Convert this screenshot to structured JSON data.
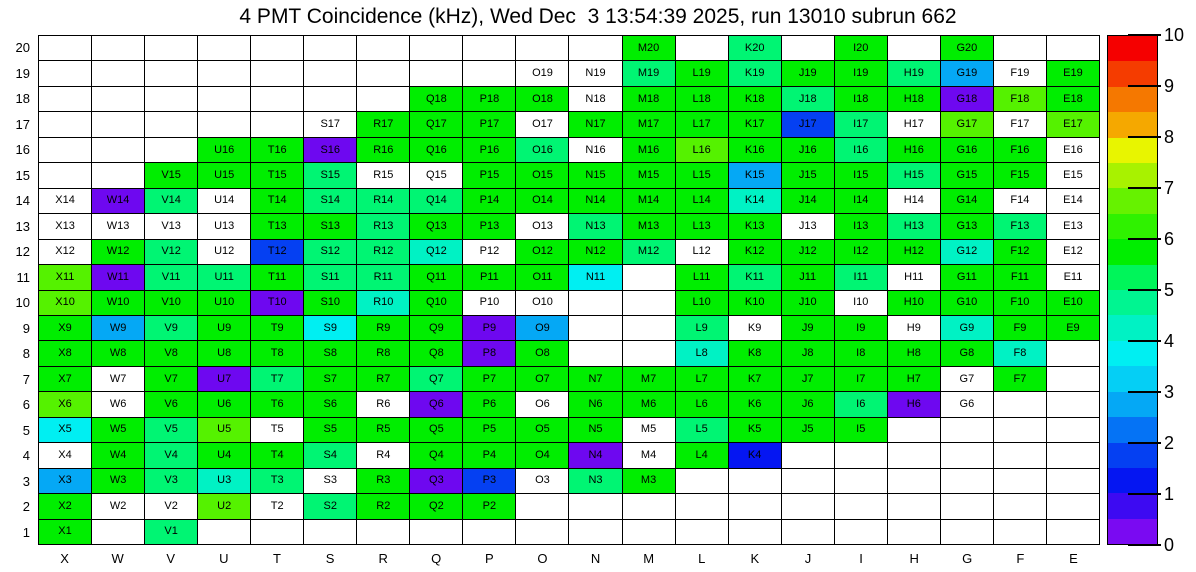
{
  "title": "4 PMT Coincidence (kHz), Wed Dec  3 13:54:39 2025, run 13010 subrun 662",
  "chart_data": {
    "type": "heatmap",
    "title": "4 PMT Coincidence (kHz), Wed Dec  3 13:54:39 2025, run 13010 subrun 662",
    "x_categories": [
      "X",
      "W",
      "V",
      "U",
      "T",
      "S",
      "R",
      "Q",
      "P",
      "O",
      "N",
      "M",
      "L",
      "K",
      "J",
      "I",
      "H",
      "G",
      "F",
      "E"
    ],
    "y_categories": [
      "20",
      "19",
      "18",
      "17",
      "16",
      "15",
      "14",
      "13",
      "12",
      "11",
      "10",
      "9",
      "8",
      "7",
      "6",
      "5",
      "4",
      "3",
      "2",
      "1"
    ],
    "palette": {
      "g": "#00EE00",
      "mg": "#00F573",
      "lg": "#55F200",
      "tq": "#00F2C4",
      "cy": "#00EFF2",
      "sb": "#05A8F5",
      "b": "#0540F2",
      "db": "#0516F2",
      "p": "#6E08F0",
      "w": "#FFFFFF"
    },
    "palette_values_khz": {
      "g": 5.7,
      "mg": 4.8,
      "lg": 6.3,
      "tq": 4.2,
      "cy": 3.6,
      "sb": 2.8,
      "b": 1.8,
      "db": 1.3,
      "p": 0.3,
      "w": 0,
      "empty": null
    },
    "cells": [
      [
        "",
        "",
        "",
        "",
        "",
        "",
        "",
        "",
        "",
        "",
        "",
        "M20:g",
        "",
        "K20:mg",
        "",
        "I20:g",
        "",
        "G20:g",
        "",
        ""
      ],
      [
        "",
        "",
        "",
        "",
        "",
        "",
        "",
        "",
        "",
        "O19:w",
        "N19:w",
        "M19:mg",
        "L19:g",
        "K19:mg",
        "J19:g",
        "I19:g",
        "H19:mg",
        "G19:sb",
        "F19:w",
        "E19:g"
      ],
      [
        "",
        "",
        "",
        "",
        "",
        "",
        "",
        "Q18:g",
        "P18:g",
        "O18:g",
        "N18:w",
        "M18:g",
        "L18:g",
        "K18:g",
        "J18:mg",
        "I18:g",
        "H18:g",
        "G18:p",
        "F18:lg",
        "E18:g"
      ],
      [
        "",
        "",
        "",
        "",
        "",
        "S17:w",
        "R17:g",
        "Q17:g",
        "P17:g",
        "O17:w",
        "N17:g",
        "M17:g",
        "L17:g",
        "K17:g",
        "J17:b",
        "I17:mg",
        "H17:w",
        "G17:lg",
        "F17:w",
        "E17:lg"
      ],
      [
        "",
        "",
        "",
        "U16:g",
        "T16:g",
        "S16:p",
        "R16:g",
        "Q16:g",
        "P16:g",
        "O16:mg",
        "N16:w",
        "M16:g",
        "L16:lg",
        "K16:g",
        "J16:g",
        "I16:mg",
        "H16:g",
        "G16:g",
        "F16:g",
        "E16:w"
      ],
      [
        "",
        "",
        "V15:g",
        "U15:g",
        "T15:g",
        "S15:mg",
        "R15:w",
        "Q15:w",
        "P15:g",
        "O15:g",
        "N15:g",
        "M15:g",
        "L15:g",
        "K15:sb",
        "J15:g",
        "I15:g",
        "H15:mg",
        "G15:g",
        "F15:g",
        "E15:w"
      ],
      [
        "X14:w",
        "W14:p",
        "V14:mg",
        "U14:w",
        "T14:g",
        "S14:mg",
        "R14:mg",
        "Q14:mg",
        "P14:g",
        "O14:g",
        "N14:g",
        "M14:g",
        "L14:g",
        "K14:tq",
        "J14:g",
        "I14:g",
        "H14:w",
        "G14:g",
        "F14:w",
        "E14:w"
      ],
      [
        "X13:w",
        "W13:w",
        "V13:w",
        "U13:w",
        "T13:g",
        "S13:g",
        "R13:mg",
        "Q13:g",
        "P13:g",
        "O13:w",
        "N13:mg",
        "M13:g",
        "L13:g",
        "K13:g",
        "J13:w",
        "I13:g",
        "H13:mg",
        "G13:g",
        "F13:mg",
        "E13:w"
      ],
      [
        "X12:w",
        "W12:g",
        "V12:mg",
        "U12:w",
        "T12:b",
        "S12:mg",
        "R12:mg",
        "Q12:tq",
        "P12:w",
        "O12:g",
        "N12:g",
        "M12:mg",
        "L12:w",
        "K12:g",
        "J12:g",
        "I12:g",
        "H12:g",
        "G12:tq",
        "F12:g",
        "E12:w"
      ],
      [
        "X11:lg",
        "W11:p",
        "V11:mg",
        "U11:mg",
        "T11:g",
        "S11:mg",
        "R11:mg",
        "Q11:g",
        "P11:g",
        "O11:g",
        "N11:cy",
        "",
        "L11:g",
        "K11:mg",
        "J11:g",
        "I11:mg",
        "H11:w",
        "G11:g",
        "F11:g",
        "E11:w"
      ],
      [
        "X10:lg",
        "W10:g",
        "V10:g",
        "U10:g",
        "T10:p",
        "S10:g",
        "R10:tq",
        "Q10:g",
        "P10:w",
        "O10:w",
        "",
        "",
        "L10:g",
        "K10:g",
        "J10:g",
        "I10:w",
        "H10:g",
        "G10:g",
        "F10:g",
        "E10:g"
      ],
      [
        "X9:g",
        "W9:sb",
        "V9:mg",
        "U9:g",
        "T9:g",
        "S9:cy",
        "R9:g",
        "Q9:g",
        "P9:p",
        "O9:sb",
        "",
        "",
        "L9:mg",
        "K9:w",
        "J9:g",
        "I9:g",
        "H9:w",
        "G9:tq",
        "F9:g",
        "E9:g"
      ],
      [
        "X8:g",
        "W8:g",
        "V8:g",
        "U8:g",
        "T8:g",
        "S8:g",
        "R8:g",
        "Q8:g",
        "P8:p",
        "O8:g",
        "",
        "",
        "L8:tq",
        "K8:g",
        "J8:g",
        "I8:g",
        "H8:g",
        "G8:g",
        "F8:tq",
        ""
      ],
      [
        "X7:g",
        "W7:w",
        "V7:g",
        "U7:p",
        "T7:mg",
        "S7:g",
        "R7:g",
        "Q7:mg",
        "P7:g",
        "O7:g",
        "N7:g",
        "M7:g",
        "L7:g",
        "K7:g",
        "J7:g",
        "I7:g",
        "H7:g",
        "G7:w",
        "F7:g",
        ""
      ],
      [
        "X6:lg",
        "W6:w",
        "V6:g",
        "U6:g",
        "T6:g",
        "S6:g",
        "R6:w",
        "Q6:p",
        "P6:g",
        "O6:w",
        "N6:g",
        "M6:g",
        "L6:g",
        "K6:g",
        "J6:g",
        "I6:mg",
        "H6:p",
        "G6:w",
        "",
        ""
      ],
      [
        "X5:cy",
        "W5:g",
        "V5:mg",
        "U5:lg",
        "T5:w",
        "S5:g",
        "R5:g",
        "Q5:g",
        "P5:g",
        "O5:g",
        "N5:g",
        "M5:w",
        "L5:mg",
        "K5:g",
        "J5:g",
        "I5:g",
        "",
        "",
        "",
        ""
      ],
      [
        "X4:w",
        "W4:g",
        "V4:mg",
        "U4:g",
        "T4:g",
        "S4:mg",
        "R4:w",
        "Q4:g",
        "P4:g",
        "O4:g",
        "N4:p",
        "M4:w",
        "L4:g",
        "K4:db",
        "",
        "",
        "",
        "",
        "",
        ""
      ],
      [
        "X3:sb",
        "W3:g",
        "V3:mg",
        "U3:tq",
        "T3:mg",
        "S3:w",
        "R3:g",
        "Q3:p",
        "P3:b",
        "O3:w",
        "N3:mg",
        "M3:g",
        "",
        "",
        "",
        "",
        "",
        "",
        "",
        ""
      ],
      [
        "X2:g",
        "W2:w",
        "V2:w",
        "U2:lg",
        "T2:w",
        "S2:mg",
        "R2:g",
        "Q2:g",
        "P2:g",
        "",
        "",
        "",
        "",
        "",
        "",
        "",
        "",
        "",
        "",
        ""
      ],
      [
        "X1:g",
        "",
        "V1:mg",
        "",
        "",
        "",
        "",
        "",
        "",
        "",
        "",
        "",
        "",
        "",
        "",
        "",
        "",
        "",
        "",
        ""
      ]
    ],
    "colorbar": {
      "min": 0,
      "max": 10,
      "tick_labels": [
        "0",
        "1",
        "2",
        "3",
        "4",
        "5",
        "6",
        "7",
        "8",
        "9",
        "10"
      ],
      "band_colors_bottom_to_top": [
        "#7A0AF2",
        "#3D0AF2",
        "#0516F2",
        "#0540F2",
        "#0573F5",
        "#05A8F5",
        "#05CFF5",
        "#00EFF2",
        "#00F2C4",
        "#00F591",
        "#00F55A",
        "#00EE00",
        "#2FF200",
        "#66F200",
        "#A8F200",
        "#E8F500",
        "#F5A800",
        "#F57800",
        "#F53C00",
        "#F50000"
      ],
      "position": "right"
    },
    "grid_lines": "on",
    "xlabel": "",
    "ylabel": ""
  }
}
